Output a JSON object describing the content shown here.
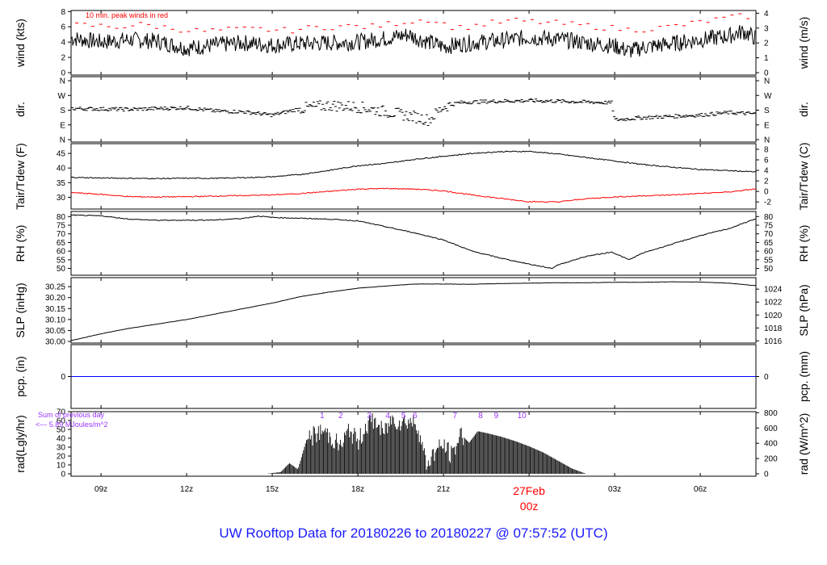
{
  "title": "UW Rooftop Data for 20180226  to  20180227 @ 07:57:52  (UTC)",
  "colors": {
    "title": "#1a1aff",
    "peak": "#ff0000",
    "tdew": "#ff0000",
    "precip": "#0000ff",
    "annotation": "#9933ff",
    "date_label": "#ff0000",
    "line": "#000000"
  },
  "x_axis": {
    "ticks": [
      "09z",
      "12z",
      "15z",
      "18z",
      "21z",
      "00z",
      "03z",
      "06z"
    ],
    "tick_hours": [
      9,
      12,
      15,
      18,
      21,
      24,
      27,
      30
    ],
    "date_label": "27Feb",
    "date_label_hour": 24,
    "range_hours": [
      7.95,
      31.95
    ]
  },
  "chart_data": [
    {
      "type": "line",
      "panel": "wind",
      "ylabel_left": "wind (kts)",
      "ylabel_right": "wind (m/s)",
      "yticks_left": [
        "0",
        "2",
        "4",
        "6",
        "8"
      ],
      "yticks_right": [
        "0",
        "1",
        "2",
        "3",
        "4"
      ],
      "ylim": [
        0,
        8.6
      ],
      "annotation": "10 min. peak winds in red",
      "series": [
        {
          "name": "wind",
          "x": [
            8,
            9,
            10,
            11,
            12,
            13,
            14,
            15,
            16,
            17,
            18,
            19,
            19.8,
            20,
            21,
            22,
            23,
            24,
            25,
            26,
            27,
            27.5,
            28,
            29,
            30,
            31,
            31.5,
            31.9
          ],
          "y": [
            4.5,
            4.0,
            4.3,
            4.1,
            3.2,
            3.6,
            3.9,
            3.6,
            3.8,
            3.9,
            4.0,
            4.5,
            5.0,
            4.6,
            3.4,
            3.9,
            4.2,
            4.6,
            4.4,
            3.9,
            3.5,
            2.8,
            3.3,
            3.8,
            4.3,
            4.8,
            5.4,
            4.6
          ]
        },
        {
          "name": "10 min. peak winds",
          "x": [
            8.5,
            9.5,
            10.5,
            11.5,
            12.5,
            13.5,
            14.5,
            15.5,
            16.5,
            17.5,
            18.5,
            19.5,
            20.5,
            21.5,
            22.5,
            23.5,
            24.5,
            25.5,
            26.5,
            27.5,
            28.5,
            29.5,
            30.5,
            31.5
          ],
          "y": [
            6.2,
            6.0,
            6.3,
            5.8,
            5.4,
            5.6,
            5.7,
            5.5,
            5.9,
            6.1,
            6.0,
            6.6,
            7.0,
            5.8,
            6.4,
            6.8,
            6.6,
            6.3,
            6.0,
            5.6,
            5.8,
            6.3,
            6.9,
            7.4
          ]
        }
      ]
    },
    {
      "type": "scatter",
      "panel": "direction",
      "ylabel_left": "dir.",
      "ylabel_right": "dir.",
      "yticks_left": [
        "N",
        "E",
        "S",
        "W",
        "N"
      ],
      "yticks_right": [
        "N",
        "E",
        "S",
        "W",
        "N"
      ],
      "ylim": [
        0,
        360
      ],
      "series": [
        {
          "name": "wind direction (deg)",
          "x": [
            8,
            10,
            12,
            13,
            14,
            15,
            16,
            17,
            18,
            19,
            20,
            20.5,
            21,
            21.5,
            22,
            23,
            24,
            25,
            26,
            26.9,
            27,
            28,
            29,
            30,
            31,
            31.9
          ],
          "y": [
            190,
            185,
            195,
            175,
            170,
            150,
            190,
            210,
            200,
            170,
            140,
            120,
            200,
            225,
            230,
            235,
            238,
            235,
            230,
            225,
            120,
            135,
            142,
            150,
            165,
            158
          ]
        }
      ]
    },
    {
      "type": "line",
      "panel": "temperature",
      "ylabel_left": "Tair/Tdew (F)",
      "ylabel_right": "Tair/Tdew (C)",
      "yticks_left": [
        "30",
        "35",
        "40",
        "45"
      ],
      "yticks_right": [
        "-2",
        "0",
        "2",
        "4",
        "6",
        "8"
      ],
      "ylim": [
        26.8,
        47.5
      ],
      "series": [
        {
          "name": "Tair",
          "x": [
            8,
            9,
            10,
            11,
            12,
            13,
            14,
            15,
            16,
            17,
            18,
            19,
            20,
            21,
            22,
            23,
            24,
            25,
            26,
            27,
            28,
            29,
            30,
            31,
            31.9
          ],
          "y": [
            36.8,
            36.6,
            36.5,
            36.4,
            36.5,
            36.5,
            36.7,
            37.0,
            37.8,
            39.2,
            40.8,
            41.6,
            43.0,
            44.0,
            45.0,
            45.6,
            45.7,
            44.8,
            43.6,
            42.4,
            41.2,
            40.3,
            39.5,
            39.1,
            38.7
          ]
        },
        {
          "name": "Tdew",
          "x": [
            8,
            9,
            10,
            11,
            12,
            13,
            14,
            15,
            16,
            17,
            18,
            19,
            20,
            21,
            22,
            23,
            24,
            25,
            26,
            27,
            28,
            29,
            30,
            31,
            31.9
          ],
          "y": [
            31.6,
            31.0,
            30.2,
            30.1,
            30.2,
            30.4,
            30.6,
            30.8,
            31.3,
            32.0,
            32.8,
            33.0,
            32.8,
            32.2,
            30.8,
            29.6,
            28.5,
            28.4,
            29.5,
            30.1,
            30.5,
            30.8,
            31.3,
            31.8,
            32.8
          ]
        }
      ]
    },
    {
      "type": "line",
      "panel": "humidity",
      "ylabel_left": "RH (%)",
      "ylabel_right": "RH (%)",
      "yticks_left": [
        "50",
        "55",
        "60",
        "65",
        "70",
        "75",
        "80"
      ],
      "yticks_right": [
        "50",
        "55",
        "60",
        "65",
        "70",
        "75",
        "80"
      ],
      "ylim": [
        47,
        82
      ],
      "series": [
        {
          "name": "RH",
          "x": [
            8,
            9,
            10,
            11,
            12,
            13,
            14,
            14.5,
            15,
            16,
            17,
            18,
            19,
            20,
            21,
            22,
            23,
            24,
            24.8,
            25,
            26,
            26.9,
            27.5,
            28,
            29,
            30,
            31,
            31.9
          ],
          "y": [
            80.8,
            80.4,
            78.5,
            77.8,
            77.9,
            78.0,
            79.0,
            80.3,
            79.5,
            79.0,
            78.5,
            77.5,
            74.0,
            70.5,
            66.5,
            60.0,
            56.0,
            52.5,
            50.0,
            52.0,
            57.0,
            59.5,
            55.0,
            59.0,
            64.0,
            69.0,
            73.0,
            78.5
          ]
        }
      ]
    },
    {
      "type": "line",
      "panel": "pressure",
      "ylabel_left": "SLP (inHg)",
      "ylabel_right": "SLP (hPa)",
      "yticks_left": [
        "30.00",
        "30.05",
        "30.10",
        "30.15",
        "30.20",
        "30.25"
      ],
      "yticks_right": [
        "1016",
        "1018",
        "1020",
        "1022",
        "1024"
      ],
      "ylim": [
        30.0,
        30.28
      ],
      "series": [
        {
          "name": "SLP",
          "x": [
            8,
            9,
            10,
            11,
            12,
            13,
            14,
            15,
            16,
            17,
            18,
            19,
            20,
            21,
            22,
            23,
            24,
            25,
            26,
            27,
            28,
            29,
            30,
            31,
            31.9
          ],
          "y": [
            30.005,
            30.035,
            30.06,
            30.08,
            30.1,
            30.125,
            30.15,
            30.175,
            30.205,
            30.225,
            30.243,
            30.253,
            30.262,
            30.262,
            30.261,
            30.264,
            30.266,
            30.268,
            30.268,
            30.27,
            30.27,
            30.272,
            30.271,
            30.266,
            30.255
          ]
        }
      ]
    },
    {
      "type": "line",
      "panel": "precipitation",
      "ylabel_left": "pcp. (in)",
      "ylabel_right": "pcp. (mm)",
      "yticks_left": [
        "0"
      ],
      "yticks_right": [
        "0"
      ],
      "ylim": [
        -1,
        1
      ],
      "series": [
        {
          "name": "precipitation",
          "x": [
            8,
            31.95
          ],
          "y": [
            0,
            0
          ]
        }
      ]
    },
    {
      "type": "area",
      "panel": "radiation",
      "ylabel_left": "rad(Lgly/hr)",
      "ylabel_right": "rad (W/m^2)",
      "yticks_left": [
        "0",
        "10",
        "20",
        "30",
        "40",
        "50",
        "60",
        "70"
      ],
      "yticks_right": [
        "0",
        "200",
        "400",
        "600",
        "800"
      ],
      "ylim": [
        0,
        70
      ],
      "daily_sum_label": "Sum of previous day",
      "daily_sum_value": "<--- 5.89 MJoules/m^2",
      "hour_markers": [
        "1",
        "2",
        "3",
        "4",
        "5",
        "6",
        "7",
        "8",
        "9",
        "10"
      ],
      "hour_marker_x": [
        16.75,
        17.4,
        18.4,
        19.05,
        19.6,
        20.0,
        21.4,
        22.3,
        22.85,
        23.75
      ],
      "series": [
        {
          "name": "solar radiation",
          "x": [
            14.8,
            15.3,
            15.6,
            15.9,
            16.2,
            16.5,
            16.8,
            17.1,
            17.4,
            17.7,
            18.0,
            18.3,
            18.6,
            18.9,
            19.2,
            19.5,
            19.8,
            20.1,
            20.4,
            20.7,
            21.0,
            21.3,
            21.6,
            21.9,
            22.2,
            22.5,
            23.0,
            23.5,
            24.0,
            24.5,
            25.0,
            25.5,
            26.0
          ],
          "y": [
            0,
            2,
            12,
            5,
            38,
            44,
            48,
            40,
            30,
            50,
            35,
            55,
            60,
            45,
            62,
            58,
            60,
            55,
            10,
            25,
            32,
            20,
            45,
            35,
            48,
            46,
            42,
            37,
            31,
            24,
            15,
            6,
            0
          ]
        }
      ]
    }
  ]
}
